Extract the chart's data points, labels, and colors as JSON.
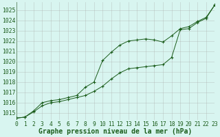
{
  "xlabel": "Graphe pression niveau de la mer (hPa)",
  "x_ticks": [
    0,
    1,
    2,
    3,
    4,
    5,
    6,
    7,
    8,
    9,
    10,
    11,
    12,
    13,
    14,
    15,
    16,
    17,
    18,
    19,
    20,
    21,
    22,
    23
  ],
  "ylim": [
    1014.3,
    1025.8
  ],
  "xlim": [
    0,
    23
  ],
  "yticks": [
    1015,
    1016,
    1017,
    1018,
    1019,
    1020,
    1021,
    1022,
    1023,
    1024,
    1025
  ],
  "series1_x": [
    0,
    1,
    2,
    3,
    4,
    5,
    6,
    7,
    8,
    9,
    10,
    11,
    12,
    13,
    14,
    15,
    16,
    17,
    18,
    19,
    20,
    21,
    22,
    23
  ],
  "series1_y": [
    1014.5,
    1014.6,
    1015.1,
    1015.7,
    1016.0,
    1016.1,
    1016.3,
    1016.5,
    1016.7,
    1017.1,
    1017.6,
    1018.3,
    1018.9,
    1019.3,
    1019.4,
    1019.5,
    1019.6,
    1019.7,
    1020.4,
    1023.1,
    1023.2,
    1023.8,
    1024.2,
    1025.5
  ],
  "series2_x": [
    0,
    1,
    2,
    3,
    4,
    5,
    6,
    7,
    8,
    9,
    10,
    11,
    12,
    13,
    14,
    15,
    16,
    17,
    18,
    19,
    20,
    21,
    22,
    23
  ],
  "series2_y": [
    1014.5,
    1014.6,
    1015.2,
    1016.0,
    1016.2,
    1016.3,
    1016.5,
    1016.7,
    1017.5,
    1018.0,
    1020.1,
    1020.9,
    1021.6,
    1022.0,
    1022.1,
    1022.2,
    1022.1,
    1021.9,
    1022.5,
    1023.2,
    1023.4,
    1023.9,
    1024.3,
    1025.5
  ],
  "line_color": "#1a5c1a",
  "bg_color": "#d8f5f0",
  "grid_color": "#aaaaaa",
  "title_fontsize": 7.0,
  "tick_fontsize": 5.8
}
